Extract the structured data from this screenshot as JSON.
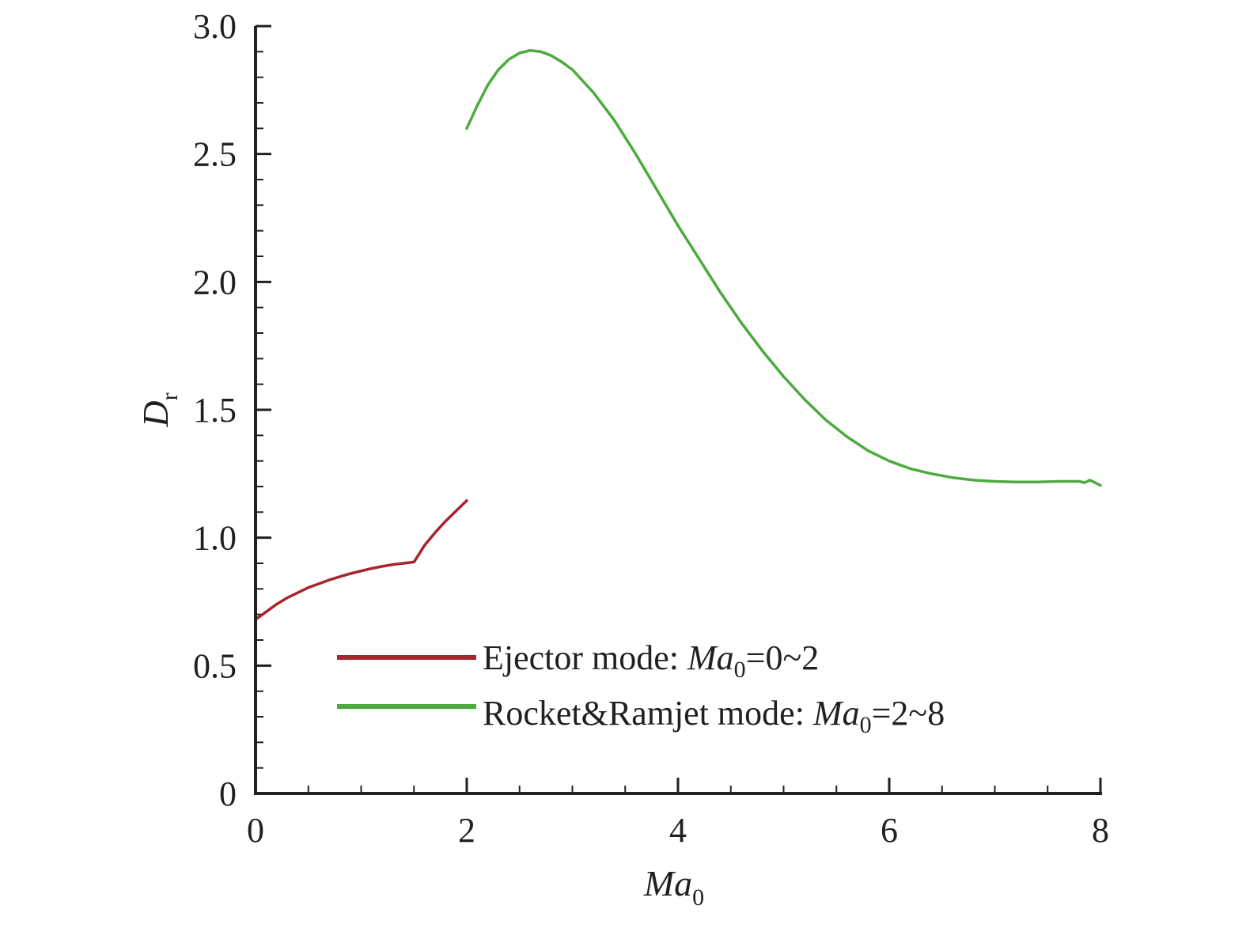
{
  "chart_data": {
    "type": "line",
    "xlabel": {
      "main": "Ma",
      "sub": "0"
    },
    "ylabel": {
      "main": "D",
      "sub": "r"
    },
    "xlim": [
      0,
      8
    ],
    "ylim": [
      0,
      3.0
    ],
    "xticks": [
      0,
      2,
      4,
      6,
      8
    ],
    "xtick_labels": [
      "0",
      "2",
      "4",
      "6",
      "8"
    ],
    "yticks": [
      0,
      0.5,
      1.0,
      1.5,
      2.0,
      2.5,
      3.0
    ],
    "ytick_labels": [
      "0",
      "0.5",
      "1.0",
      "1.5",
      "2.0",
      "2.5",
      "3.0"
    ],
    "x_minor_step": 0.5,
    "y_minor_step": 0.1,
    "grid": false,
    "legend_position": "bottom-center",
    "series": [
      {
        "name": "Ejector mode: Ma0=0~2",
        "legend": {
          "pre": "Ejector mode: ",
          "it": "Ma",
          "sub": "0",
          "post": "=0~2"
        },
        "color": "#a8252d",
        "x": [
          0,
          0.1,
          0.2,
          0.3,
          0.4,
          0.5,
          0.6,
          0.7,
          0.8,
          0.9,
          1.0,
          1.1,
          1.2,
          1.3,
          1.4,
          1.5,
          1.6,
          1.7,
          1.8,
          1.9,
          2.0
        ],
        "y": [
          0.68,
          0.71,
          0.74,
          0.765,
          0.785,
          0.805,
          0.82,
          0.835,
          0.848,
          0.86,
          0.87,
          0.88,
          0.888,
          0.895,
          0.9,
          0.905,
          0.97,
          1.02,
          1.065,
          1.105,
          1.145
        ]
      },
      {
        "name": "Rocket&Ramjet mode: Ma0=2~8",
        "legend": {
          "pre": "Rocket&Ramjet mode: ",
          "it": "Ma",
          "sub": "0",
          "post": "=2~8"
        },
        "color": "#4daa3f",
        "x": [
          2.0,
          2.1,
          2.2,
          2.3,
          2.4,
          2.5,
          2.6,
          2.7,
          2.8,
          2.9,
          3.0,
          3.2,
          3.4,
          3.6,
          3.8,
          4.0,
          4.2,
          4.4,
          4.6,
          4.8,
          5.0,
          5.2,
          5.4,
          5.6,
          5.8,
          6.0,
          6.2,
          6.4,
          6.6,
          6.8,
          7.0,
          7.2,
          7.4,
          7.6,
          7.8,
          7.85,
          7.9,
          8.0
        ],
        "y": [
          2.6,
          2.69,
          2.77,
          2.83,
          2.87,
          2.895,
          2.905,
          2.9,
          2.885,
          2.86,
          2.83,
          2.74,
          2.63,
          2.5,
          2.36,
          2.22,
          2.09,
          1.96,
          1.84,
          1.73,
          1.63,
          1.54,
          1.46,
          1.395,
          1.34,
          1.3,
          1.27,
          1.25,
          1.235,
          1.225,
          1.22,
          1.218,
          1.218,
          1.22,
          1.22,
          1.215,
          1.225,
          1.205
        ]
      }
    ]
  }
}
